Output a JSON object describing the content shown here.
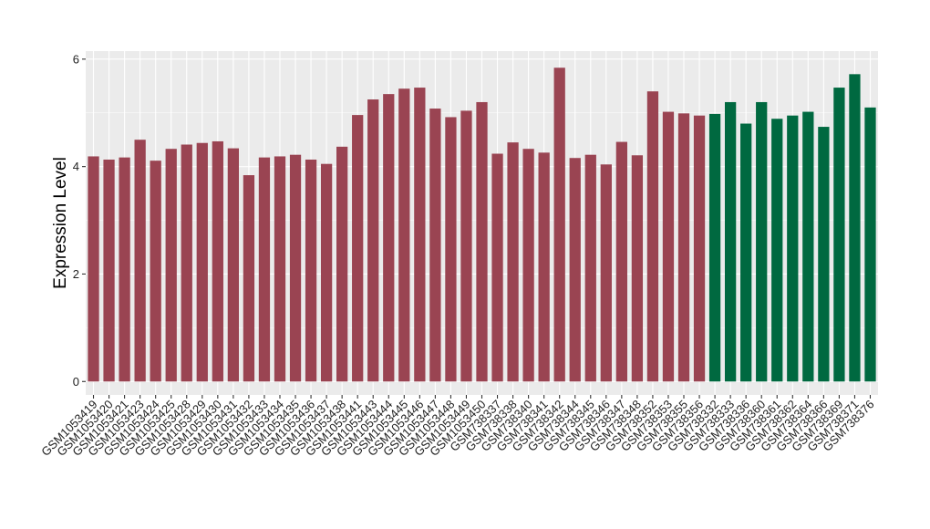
{
  "chart_data": {
    "type": "bar",
    "title": "",
    "xlabel": "",
    "ylabel": "Expression Level",
    "ylim": [
      -0.25,
      6.15
    ],
    "yticks": [
      0,
      2,
      4,
      6
    ],
    "grid": true,
    "categories": [
      "GSM1053419",
      "GSM1053420",
      "GSM1053421",
      "GSM1053423",
      "GSM1053424",
      "GSM1053425",
      "GSM1053428",
      "GSM1053429",
      "GSM1053430",
      "GSM1053431",
      "GSM1053432",
      "GSM1053433",
      "GSM1053434",
      "GSM1053435",
      "GSM1053436",
      "GSM1053437",
      "GSM1053438",
      "GSM1053441",
      "GSM1053443",
      "GSM1053444",
      "GSM1053445",
      "GSM1053446",
      "GSM1053447",
      "GSM1053448",
      "GSM1053449",
      "GSM1053450",
      "GSM738337",
      "GSM738338",
      "GSM738340",
      "GSM738341",
      "GSM738342",
      "GSM738344",
      "GSM738345",
      "GSM738346",
      "GSM738347",
      "GSM738348",
      "GSM738352",
      "GSM738353",
      "GSM738355",
      "GSM738356",
      "GSM738332",
      "GSM738333",
      "GSM738336",
      "GSM738360",
      "GSM738361",
      "GSM738362",
      "GSM738364",
      "GSM738366",
      "GSM738369",
      "GSM738371",
      "GSM738376"
    ],
    "values": [
      4.19,
      4.13,
      4.17,
      4.5,
      4.11,
      4.33,
      4.41,
      4.44,
      4.47,
      4.34,
      3.84,
      4.17,
      4.19,
      4.22,
      4.13,
      4.05,
      4.37,
      4.96,
      5.25,
      5.35,
      5.45,
      5.47,
      5.08,
      4.92,
      5.04,
      5.2,
      4.24,
      4.45,
      4.33,
      4.26,
      5.84,
      4.16,
      4.22,
      4.04,
      4.46,
      4.21,
      5.4,
      5.02,
      4.99,
      4.95,
      4.98,
      5.2,
      4.8,
      5.2,
      4.89,
      4.95,
      5.02,
      4.74,
      5.47,
      5.72,
      5.1
    ],
    "groups": [
      {
        "count": 40,
        "color": "#9a4452"
      },
      {
        "count": 11,
        "color": "#006940"
      }
    ],
    "panel_background": "#ebebeb",
    "grid_color": "#ffffff"
  }
}
